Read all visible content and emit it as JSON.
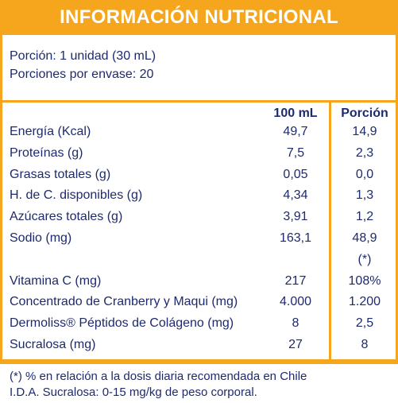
{
  "header": {
    "title": "INFORMACIÓN NUTRICIONAL"
  },
  "serving": {
    "size": "Porción: 1 unidad (30 mL)",
    "per_container": "Porciones por envase: 20"
  },
  "table": {
    "columns": [
      "100 mL",
      "Porción"
    ],
    "rows": [
      {
        "label": "Energía (Kcal)",
        "per100": "49,7",
        "portion": "14,9"
      },
      {
        "label": "Proteínas (g)",
        "per100": "7,5",
        "portion": "2,3"
      },
      {
        "label": "Grasas totales (g)",
        "per100": "0,05",
        "portion": "0,0"
      },
      {
        "label": "H. de C. disponibles (g)",
        "per100": "4,34",
        "portion": "1,3"
      },
      {
        "label": "Azúcares totales (g)",
        "per100": "3,91",
        "portion": "1,2"
      },
      {
        "label": "Sodio (mg)",
        "per100": "163,1",
        "portion": "48,9"
      },
      {
        "portion": "(*)"
      },
      {
        "label": "Vitamina C (mg)",
        "per100": "217",
        "portion": "108%"
      },
      {
        "label": "Concentrado de Cranberry y Maqui (mg)",
        "per100": "4.000",
        "portion": "1.200"
      },
      {
        "label": "Dermoliss® Péptidos de Colágeno (mg)",
        "per100": "8",
        "portion": "2,5"
      },
      {
        "label": "Sucralosa (mg)",
        "per100": "27",
        "portion": "8"
      }
    ]
  },
  "footnotes": [
    "(*) % en relación a la dosis diaria recomendada en Chile",
    "I.D.A. Sucralosa: 0-15 mg/kg de peso corporal."
  ]
}
